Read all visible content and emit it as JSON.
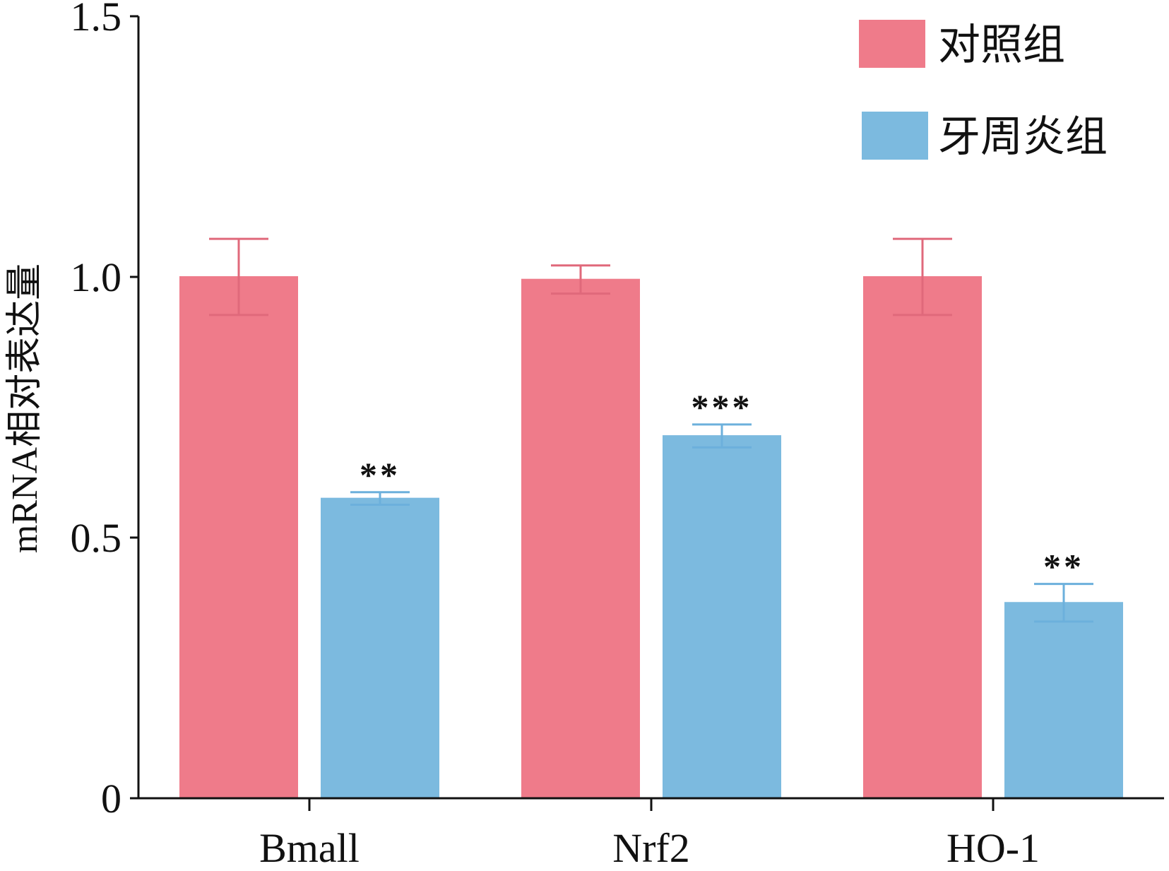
{
  "chart_data": {
    "type": "bar",
    "categories": [
      "Bmall",
      "Nrf2",
      "HO-1"
    ],
    "series": [
      {
        "name": "对照组",
        "color": "#ef7b8a",
        "values": [
          1.0,
          0.995,
          1.0
        ],
        "errors": [
          0.073,
          0.027,
          0.073
        ]
      },
      {
        "name": "牙周炎组",
        "color": "#7cbadf",
        "values": [
          0.575,
          0.695,
          0.375
        ],
        "errors": [
          0.012,
          0.022,
          0.036
        ]
      }
    ],
    "significance": [
      {
        "category": "Bmall",
        "series": "牙周炎组",
        "label": "**"
      },
      {
        "category": "Nrf2",
        "series": "牙周炎组",
        "label": "***"
      },
      {
        "category": "HO-1",
        "series": "牙周炎组",
        "label": "**"
      }
    ],
    "yticks": [
      "0",
      "0.5",
      "1.0",
      "1.5"
    ],
    "ytick_values": [
      0,
      0.5,
      1.0,
      1.5
    ],
    "ylim": [
      0,
      1.5
    ],
    "ylabel": "mRNA相对表达量",
    "xlabel": "",
    "grid": false,
    "legend_position": "top-right",
    "axis_color": "#111111"
  }
}
